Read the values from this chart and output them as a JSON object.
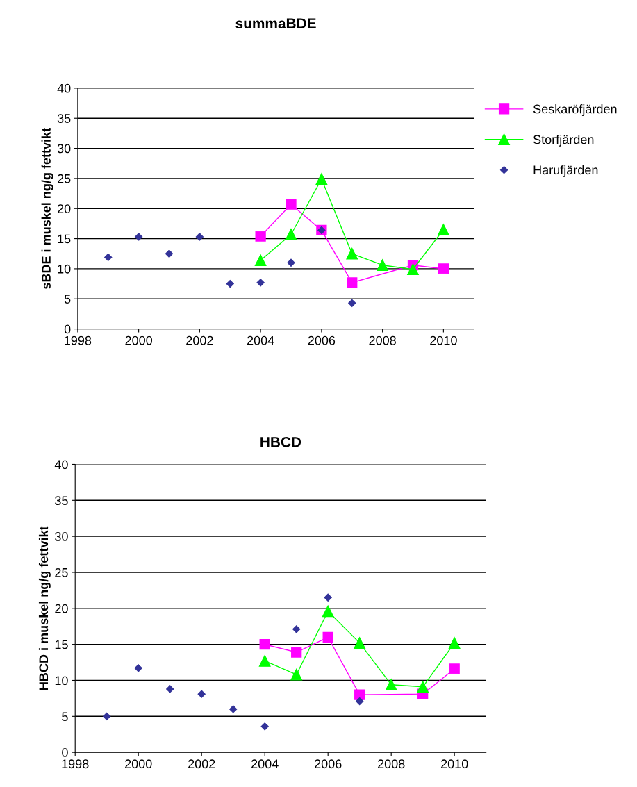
{
  "chart_data": [
    {
      "type": "line",
      "title": "summaBDE",
      "ylabel": "sBDE i muskel ng/g fettvikt",
      "xlim": [
        1998,
        2011
      ],
      "xticks": [
        1998,
        2000,
        2002,
        2004,
        2006,
        2008,
        2010
      ],
      "ylim": [
        0,
        40
      ],
      "yticks": [
        0,
        5,
        10,
        15,
        20,
        25,
        30,
        35,
        40
      ],
      "grid": "y",
      "legend": "right",
      "series": [
        {
          "name": "Seskaröfjärden",
          "color": "#ff00ff",
          "marker": "square",
          "x": [
            2004,
            2005,
            2006,
            2007,
            2009,
            2010
          ],
          "values": [
            15.4,
            20.7,
            16.4,
            7.7,
            10.6,
            10.0
          ]
        },
        {
          "name": "Storfjärden",
          "color": "#00ff00",
          "marker": "triangle",
          "x": [
            2004,
            2005,
            2006,
            2007,
            2008,
            2009,
            2010
          ],
          "values": [
            11.4,
            15.7,
            24.9,
            12.5,
            10.6,
            9.9,
            16.5
          ]
        },
        {
          "name": "Harufjärden",
          "type": "scatter",
          "color": "#333399",
          "marker": "diamond",
          "x": [
            1999,
            2000,
            2001,
            2002,
            2003,
            2004,
            2005,
            2006,
            2007
          ],
          "values": [
            11.9,
            15.3,
            12.5,
            15.3,
            7.5,
            7.7,
            11.0,
            16.4,
            4.3
          ]
        }
      ]
    },
    {
      "type": "line",
      "title": "HBCD",
      "ylabel": "HBCD i muskel ng/g fettvikt",
      "xlim": [
        1998,
        2011
      ],
      "xticks": [
        1998,
        2000,
        2002,
        2004,
        2006,
        2008,
        2010
      ],
      "ylim": [
        0,
        40
      ],
      "yticks": [
        0,
        5,
        10,
        15,
        20,
        25,
        30,
        35,
        40
      ],
      "grid": "y",
      "series": [
        {
          "color": "#ff00ff",
          "marker": "square",
          "x": [
            2004,
            2005,
            2006,
            2007,
            2009,
            2010
          ],
          "values": [
            15.0,
            13.9,
            16.0,
            8.0,
            8.1,
            11.6
          ]
        },
        {
          "color": "#00ff00",
          "marker": "triangle",
          "x": [
            2004,
            2005,
            2006,
            2007,
            2008,
            2009,
            2010
          ],
          "values": [
            12.7,
            10.8,
            19.6,
            15.2,
            9.4,
            9.1,
            15.2
          ]
        },
        {
          "type": "scatter",
          "color": "#333399",
          "marker": "diamond",
          "x": [
            1999,
            2000,
            2001,
            2002,
            2003,
            2004,
            2005,
            2006,
            2007
          ],
          "values": [
            5.0,
            11.7,
            8.8,
            8.1,
            6.0,
            3.6,
            17.1,
            21.5,
            7.1
          ]
        }
      ]
    }
  ]
}
